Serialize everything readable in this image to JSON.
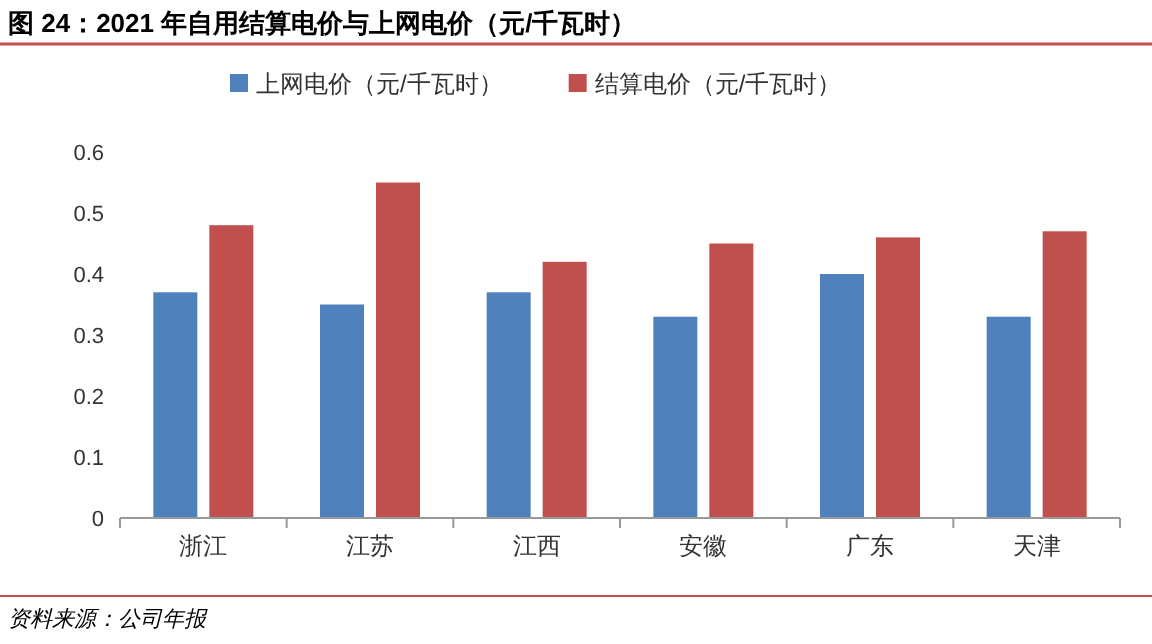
{
  "chart_data": {
    "type": "bar",
    "title": "图 24：2021 年自用结算电价与上网电价（元/千瓦时）",
    "categories": [
      "浙江",
      "江苏",
      "江西",
      "安徽",
      "广东",
      "天津"
    ],
    "series": [
      {
        "name": "上网电价（元/千瓦时）",
        "color": "#4f81bd",
        "values": [
          0.37,
          0.35,
          0.37,
          0.33,
          0.4,
          0.33
        ]
      },
      {
        "name": "结算电价（元/千瓦时）",
        "color": "#c0504d",
        "values": [
          0.48,
          0.55,
          0.42,
          0.45,
          0.46,
          0.47
        ]
      }
    ],
    "ylim": [
      0,
      0.6
    ],
    "yticks": [
      0,
      0.1,
      0.2,
      0.3,
      0.4,
      0.5,
      0.6
    ],
    "legend": "top",
    "annotations": [
      "资料来源：公司年报"
    ]
  }
}
